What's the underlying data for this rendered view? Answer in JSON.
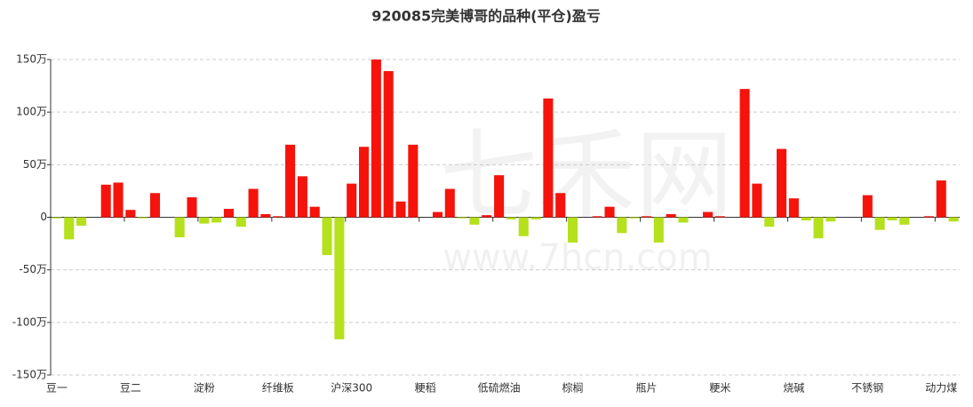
{
  "chart_data": {
    "type": "bar",
    "title": "920085完美博哥的品种(平仓)盈亏",
    "watermark_logo": "七禾网",
    "watermark_url": "www.7hcn.com",
    "categories": [
      "豆一",
      null,
      null,
      null,
      null,
      null,
      "豆二",
      null,
      null,
      null,
      null,
      null,
      "淀粉",
      null,
      null,
      null,
      null,
      null,
      "纤维板",
      null,
      null,
      null,
      null,
      null,
      "沪深300",
      null,
      null,
      null,
      null,
      null,
      "粳稻",
      null,
      null,
      null,
      null,
      null,
      "低硫燃油",
      null,
      null,
      null,
      null,
      null,
      "棕榈",
      null,
      null,
      null,
      null,
      null,
      "瓶片",
      null,
      null,
      null,
      null,
      null,
      "粳米",
      null,
      null,
      null,
      null,
      null,
      "烧碱",
      null,
      null,
      null,
      null,
      null,
      "不锈钢",
      null,
      null,
      null,
      null,
      null,
      "动力煤",
      null
    ],
    "values": [
      -1,
      -21,
      -8,
      0,
      31,
      33,
      7,
      -1,
      23,
      0,
      -19,
      19,
      -6,
      -5,
      8,
      -9,
      27,
      3,
      1,
      69,
      39,
      10,
      -36,
      -116,
      32,
      67,
      150,
      139,
      15,
      69,
      0,
      5,
      27,
      -1,
      -7,
      2,
      40,
      -2,
      -18,
      -2,
      113,
      23,
      -24,
      0,
      1,
      10,
      -15,
      -1,
      1,
      -24,
      3,
      -5,
      0,
      5,
      1,
      0,
      122,
      32,
      -9,
      65,
      18,
      -3,
      -20,
      -4,
      0,
      0,
      21,
      -12,
      -3,
      -7,
      0,
      1,
      35,
      -4
    ],
    "positive_color": "#f5130c",
    "negative_color": "#b5e01c",
    "ylim": [
      -150,
      150
    ],
    "yticks": [
      {
        "value": -150,
        "label": "-150万"
      },
      {
        "value": -100,
        "label": "-100万"
      },
      {
        "value": -50,
        "label": "-50万"
      },
      0,
      {
        "value": 50,
        "label": "50万"
      },
      {
        "value": 100,
        "label": "100万"
      },
      {
        "value": 150,
        "label": "150万"
      }
    ],
    "grid": true
  }
}
